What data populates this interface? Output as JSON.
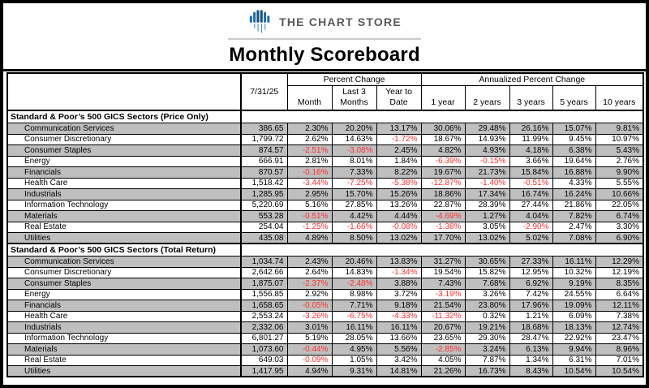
{
  "page": {
    "brand": "THE CHART STORE",
    "title": "Monthly Scoreboard"
  },
  "colors": {
    "negative_text": "#ff2f2f",
    "shaded_row": "#bfbfbf",
    "logo_blue": "#1d6ca8",
    "brand_gray": "#57585a"
  },
  "table": {
    "date_column_header": "7/31/25",
    "group_headers": [
      {
        "label": "Percent Change",
        "span": 3
      },
      {
        "label": "Annualized Percent Change",
        "span": 5
      }
    ],
    "sub_headers": [
      "Month",
      "Last 3\nMonths",
      "Year to\nDate",
      "1 year",
      "2 years",
      "3 years",
      "5 years",
      "10 years"
    ],
    "sections": [
      {
        "title": "Standard & Poor’s 500 GICS Sectors (Price Only)",
        "rows": [
          {
            "name": "Communication Services",
            "values": [
              "386.65",
              "2.30%",
              "20.20%",
              "13.17%",
              "30.06%",
              "29.48%",
              "26.16%",
              "15.07%",
              "9.81%"
            ]
          },
          {
            "name": "Consumer Discretionary",
            "values": [
              "1,799.72",
              "2.62%",
              "14.63%",
              "-1.72%",
              "18.67%",
              "14.93%",
              "11.99%",
              "9.45%",
              "10.97%"
            ]
          },
          {
            "name": "Consumer Staples",
            "values": [
              "874.57",
              "-2.51%",
              "-3.08%",
              "2.45%",
              "4.82%",
              "4.93%",
              "4.18%",
              "6.38%",
              "5.43%"
            ]
          },
          {
            "name": "Energy",
            "values": [
              "666.91",
              "2.81%",
              "8.01%",
              "1.84%",
              "-6.39%",
              "-0.15%",
              "3.66%",
              "19.64%",
              "2.76%"
            ]
          },
          {
            "name": "Financials",
            "values": [
              "870.57",
              "-0.16%",
              "7.33%",
              "8.22%",
              "19.67%",
              "21.73%",
              "15.84%",
              "16.88%",
              "9.90%"
            ]
          },
          {
            "name": "Health Care",
            "values": [
              "1,518.42",
              "-3.44%",
              "-7.25%",
              "-5.38%",
              "-12.87%",
              "-1.40%",
              "-0.51%",
              "4.33%",
              "5.55%"
            ]
          },
          {
            "name": "Industrials",
            "values": [
              "1,285.95",
              "2.95%",
              "15.70%",
              "15.26%",
              "18.86%",
              "17.34%",
              "16.74%",
              "16.24%",
              "10.66%"
            ]
          },
          {
            "name": "Information Technology",
            "values": [
              "5,220.69",
              "5.16%",
              "27.85%",
              "13.26%",
              "22.87%",
              "28.39%",
              "27.44%",
              "21.86%",
              "22.05%"
            ]
          },
          {
            "name": "Materials",
            "values": [
              "553.28",
              "-0.51%",
              "4.42%",
              "4.44%",
              "-4.69%",
              "1.27%",
              "4.04%",
              "7.82%",
              "6.74%"
            ]
          },
          {
            "name": "Real Estate",
            "values": [
              "254.04",
              "-1.25%",
              "-1.66%",
              "-0.08%",
              "-1.38%",
              "3.05%",
              "-2.90%",
              "2.47%",
              "3.30%"
            ]
          },
          {
            "name": "Utilities",
            "values": [
              "435.08",
              "4.89%",
              "8.50%",
              "13.02%",
              "17.70%",
              "13.02%",
              "5.02%",
              "7.08%",
              "6.90%"
            ]
          }
        ]
      },
      {
        "title": "Standard & Poor’s 500 GICS Sectors (Total Return)",
        "rows": [
          {
            "name": "Communication Services",
            "values": [
              "1,034.74",
              "2.43%",
              "20.46%",
              "13.83%",
              "31.27%",
              "30.65%",
              "27.33%",
              "16.11%",
              "12.29%"
            ]
          },
          {
            "name": "Consumer Discretionary",
            "values": [
              "2,642.66",
              "2.64%",
              "14.83%",
              "-1.34%",
              "19.54%",
              "15.82%",
              "12.95%",
              "10.32%",
              "12.19%"
            ]
          },
          {
            "name": "Consumer Staples",
            "values": [
              "1,875.07",
              "-2.37%",
              "-2.48%",
              "3.88%",
              "7.43%",
              "7.68%",
              "6.92%",
              "9.19%",
              "8.35%"
            ]
          },
          {
            "name": "Energy",
            "values": [
              "1,556.85",
              "2.92%",
              "8.98%",
              "3.72%",
              "-3.19%",
              "3.26%",
              "7.42%",
              "24.55%",
              "6.64%"
            ]
          },
          {
            "name": "Financials",
            "values": [
              "1,658.65",
              "-0.05%",
              "7.71%",
              "9.18%",
              "21.54%",
              "23.80%",
              "17.96%",
              "19.09%",
              "12.11%"
            ]
          },
          {
            "name": "Health Care",
            "values": [
              "2,553.24",
              "-3.26%",
              "-6.75%",
              "-4.33%",
              "-11.32%",
              "0.32%",
              "1.21%",
              "6.09%",
              "7.38%"
            ]
          },
          {
            "name": "Industrials",
            "values": [
              "2,332.06",
              "3.01%",
              "16.11%",
              "16.11%",
              "20.67%",
              "19.21%",
              "18.68%",
              "18.13%",
              "12.74%"
            ]
          },
          {
            "name": "Information Technology",
            "values": [
              "6,801.27",
              "5.19%",
              "28.05%",
              "13.66%",
              "23.65%",
              "29.30%",
              "28.47%",
              "22.92%",
              "23.47%"
            ]
          },
          {
            "name": "Materials",
            "values": [
              "1,073.60",
              "-0.44%",
              "4.95%",
              "5.56%",
              "-2.85%",
              "3.24%",
              "6.13%",
              "9.94%",
              "8.96%"
            ]
          },
          {
            "name": "Real Estate",
            "values": [
              "649.03",
              "-0.09%",
              "1.05%",
              "3.42%",
              "4.05%",
              "7.87%",
              "1.34%",
              "6.31%",
              "7.01%"
            ]
          },
          {
            "name": "Utilities",
            "values": [
              "1,417.95",
              "4.94%",
              "9.31%",
              "14.81%",
              "21.26%",
              "16.73%",
              "8.43%",
              "10.54%",
              "10.54%"
            ]
          }
        ]
      }
    ]
  }
}
